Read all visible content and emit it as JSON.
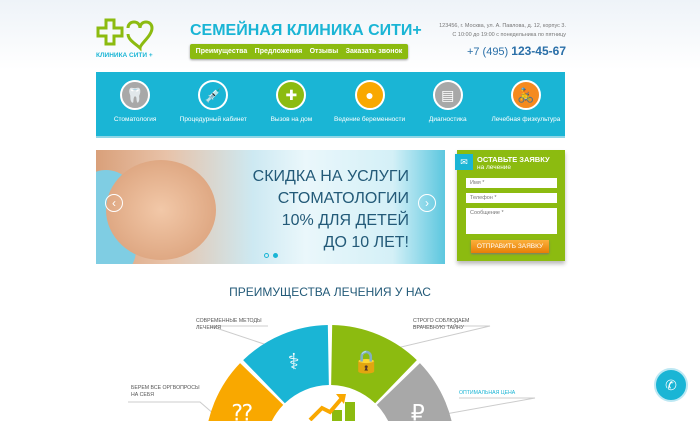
{
  "header": {
    "logo_text": "КЛИНИКА СИТИ +",
    "title": "СЕМЕЙНАЯ КЛИНИКА СИТИ+",
    "menu": [
      "Преимущества",
      "Предложения",
      "Отзывы",
      "Заказать звонок"
    ],
    "address": "123456, г. Москва, ул. А. Павлова, д. 12, корпус 3.",
    "hours": "С 10:00 до 19:00 с понедельника по пятницу",
    "phone_prefix": "+7 (495)",
    "phone_number": "123-45-67"
  },
  "services": [
    {
      "label": "Стоматология",
      "icon": "tooth-icon",
      "color": "#a8a8a8",
      "glyph": "🦷"
    },
    {
      "label": "Процедурный кабинет",
      "icon": "syringe-icon",
      "color": "#1ab5d5",
      "glyph": "💉"
    },
    {
      "label": "Вызов на дом",
      "icon": "ambulance-icon",
      "color": "#8cbb10",
      "glyph": "✚"
    },
    {
      "label": "Ведение беременности",
      "icon": "fetus-icon",
      "color": "#f9a800",
      "glyph": "●"
    },
    {
      "label": "Диагностика",
      "icon": "monitor-icon",
      "color": "#a8a8a8",
      "glyph": "▤"
    },
    {
      "label": "Лечебная физкультура",
      "icon": "bike-icon",
      "color": "#f58a1f",
      "glyph": "🚴"
    }
  ],
  "slider": {
    "lines": [
      "СКИДКА НА УСЛУГИ",
      "СТОМАТОЛОГИИ",
      "10% ДЛЯ ДЕТЕЙ",
      "ДО 10 ЛЕТ!"
    ],
    "prev": "‹",
    "next": "›",
    "active_slide": 2,
    "slides": 2
  },
  "form": {
    "title": "ОСТАВЬТЕ ЗАЯВКУ",
    "subtitle": "на лечение",
    "name_placeholder": "Имя *",
    "phone_placeholder": "Телефон *",
    "message_placeholder": "Сообщение *",
    "submit": "ОТПРАВИТЬ ЗАЯВКУ"
  },
  "advantages": {
    "title": "ПРЕИМУЩЕСТВА ЛЕЧЕНИЯ У НАС",
    "items": [
      {
        "label": "БЕРЕМ ВСЕ ОРГВОПРОСЫ НА СЕБЯ",
        "color": "#f9a800",
        "icon": "question-icon"
      },
      {
        "label": "СОВРЕМЕННЫЕ МЕТОДЫ ЛЕЧЕНИЯ",
        "color": "#1ab5d5",
        "icon": "caduceus-icon"
      },
      {
        "label": "СТРОГО СОБЛЮДАЕМ ВРАЧЕБНУЮ ТАЙНУ",
        "color": "#8cbb10",
        "icon": "lock-icon"
      },
      {
        "label": "ОПТИМАЛЬНАЯ ЦЕНА",
        "color": "#a8a8a8",
        "icon": "ruble-icon"
      }
    ]
  },
  "fab_icon": "phone-icon"
}
